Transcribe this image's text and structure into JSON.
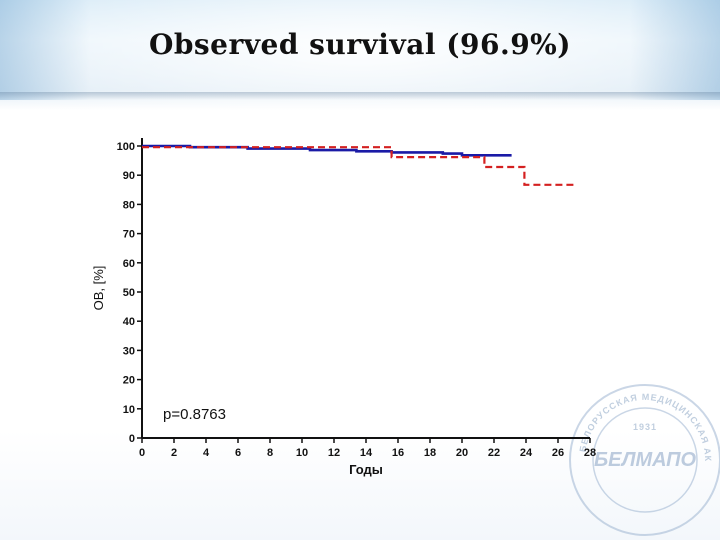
{
  "slide": {
    "title": "Observed survival (96.9%)"
  },
  "chart_data": {
    "type": "line",
    "title": "",
    "xlabel": "Годы",
    "ylabel": "ОВ, [%]",
    "xlim": [
      0,
      28
    ],
    "ylim": [
      0,
      100
    ],
    "x_ticks": [
      "0",
      "2",
      "4",
      "6",
      "8",
      "10",
      "12",
      "14",
      "16",
      "18",
      "20",
      "22",
      "24",
      "26",
      "28"
    ],
    "y_ticks": [
      "0",
      "10",
      "20",
      "30",
      "40",
      "50",
      "60",
      "70",
      "80",
      "90",
      "100"
    ],
    "grid": false,
    "annotation": "p=0.8763",
    "series": [
      {
        "style": "solid",
        "color": "#1a1aa6",
        "points": [
          [
            0,
            100
          ],
          [
            3,
            100
          ],
          [
            3,
            99.6
          ],
          [
            6.6,
            99.6
          ],
          [
            6.6,
            99.1
          ],
          [
            10.5,
            99.1
          ],
          [
            10.5,
            98.6
          ],
          [
            13.4,
            98.6
          ],
          [
            13.4,
            98.2
          ],
          [
            15.6,
            98.2
          ],
          [
            15.6,
            97.8
          ],
          [
            18.8,
            97.8
          ],
          [
            18.8,
            97.4
          ],
          [
            20,
            97.4
          ],
          [
            20,
            96.8
          ],
          [
            23.1,
            96.8
          ]
        ]
      },
      {
        "style": "dashed",
        "color": "#d42020",
        "points": [
          [
            0,
            99.6
          ],
          [
            15.6,
            99.6
          ],
          [
            15.6,
            96.2
          ],
          [
            21.4,
            96.2
          ],
          [
            21.4,
            92.8
          ],
          [
            23.9,
            92.8
          ],
          [
            23.9,
            86.7
          ],
          [
            27,
            86.7
          ]
        ]
      }
    ]
  },
  "watermark": {
    "year": "1931",
    "logo_text": "БЕЛМАПО",
    "ring_text": "БЕЛОРУССКАЯ МЕДИЦИНСКАЯ АКАДЕМИЯ ПОСЛЕДИПЛОМНОГО ОБРАЗОВАНИЯ"
  }
}
